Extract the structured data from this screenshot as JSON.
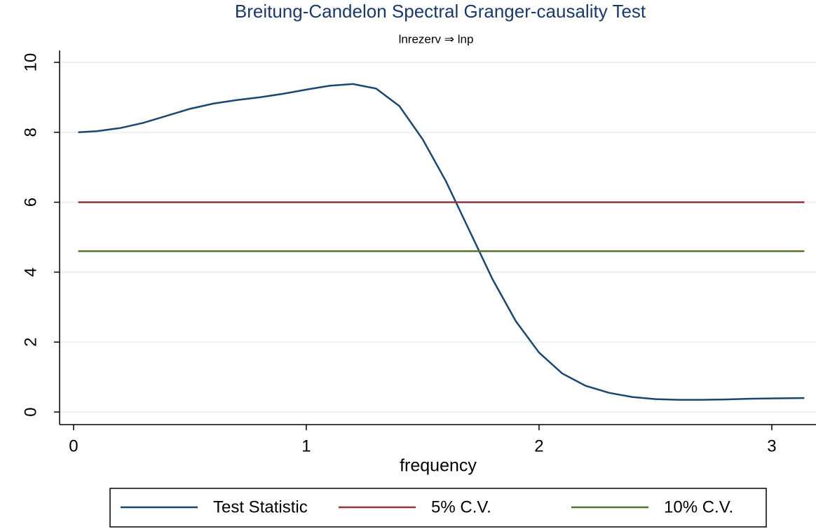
{
  "chart_data": {
    "type": "line",
    "title": "Breitung-Candelon Spectral Granger-causality Test",
    "subtitle": "lnrezerv ⇒ lnp",
    "x_label": "frequency",
    "xlim": [
      -0.06,
      3.19
    ],
    "ylim": [
      -0.36,
      10.34
    ],
    "xticks": [
      0,
      1,
      2,
      3
    ],
    "yticks": [
      0,
      2,
      4,
      6,
      8,
      10
    ],
    "grid": true,
    "legend": "bottom",
    "series": [
      {
        "name": "Test Statistic",
        "color": "#1a476f",
        "x": [
          0.02,
          0.1,
          0.2,
          0.3,
          0.4,
          0.5,
          0.6,
          0.7,
          0.8,
          0.9,
          1.0,
          1.1,
          1.2,
          1.3,
          1.4,
          1.5,
          1.6,
          1.7,
          1.8,
          1.9,
          2.0,
          2.1,
          2.2,
          2.3,
          2.4,
          2.5,
          2.6,
          2.7,
          2.8,
          2.9,
          3.0,
          3.14
        ],
        "values": [
          8.0,
          8.03,
          8.12,
          8.27,
          8.47,
          8.67,
          8.82,
          8.92,
          9.0,
          9.1,
          9.22,
          9.33,
          9.38,
          9.25,
          8.75,
          7.8,
          6.6,
          5.2,
          3.8,
          2.6,
          1.7,
          1.1,
          0.75,
          0.55,
          0.43,
          0.37,
          0.35,
          0.35,
          0.36,
          0.38,
          0.39,
          0.4
        ]
      },
      {
        "name": "5% C.V.",
        "color": "#90353b",
        "x": [
          0.02,
          3.14
        ],
        "values": [
          6.0,
          6.0
        ]
      },
      {
        "name": "10% C.V.",
        "color": "#55752f",
        "x": [
          0.02,
          3.14
        ],
        "values": [
          4.6,
          4.6
        ]
      }
    ]
  }
}
